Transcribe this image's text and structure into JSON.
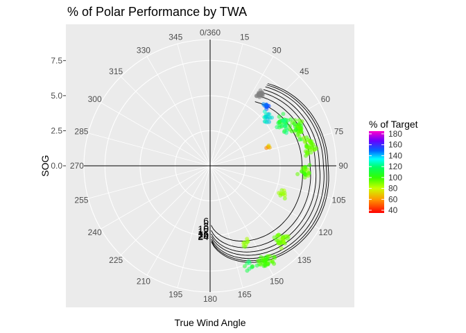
{
  "chart_data": {
    "type": "scatter",
    "coordinate_system": "polar",
    "title": "% of Polar Performance by TWA",
    "xlabel": "True Wind Angle",
    "ylabel": "SOG",
    "angle_ticks": [
      "0/360",
      "15",
      "30",
      "45",
      "60",
      "75",
      "90",
      "105",
      "120",
      "135",
      "150",
      "165",
      "180",
      "195",
      "210",
      "225",
      "240",
      "255",
      "270",
      "285",
      "300",
      "315",
      "330",
      "345"
    ],
    "radial_ticks": [
      "0.0",
      "2.5",
      "5.0",
      "7.5"
    ],
    "radial_tick_values": [
      0,
      2.5,
      5.0,
      7.5
    ],
    "rlim": [
      0,
      9
    ],
    "legend": {
      "title": "% of Target",
      "placement": "right",
      "ticks": [
        "40",
        "60",
        "80",
        "100",
        "120",
        "140",
        "160",
        "180"
      ],
      "tick_values": [
        40,
        60,
        80,
        100,
        120,
        140,
        160,
        180
      ],
      "range": [
        35,
        185
      ]
    },
    "polar_curves": {
      "labels": [
        "6",
        "8",
        "10",
        "12",
        "16",
        "20",
        "24"
      ],
      "peak_speed": [
        6.9,
        7.5,
        7.9,
        8.2,
        8.5,
        8.7,
        8.85
      ]
    },
    "clusters": [
      {
        "twa": 35,
        "twa_spread": 4,
        "sog": 6.2,
        "sog_spread": 0.35,
        "pct": 0,
        "count": 30
      },
      {
        "twa": 43,
        "twa_spread": 3,
        "sog": 5.9,
        "sog_spread": 0.3,
        "pct": 140,
        "count": 12
      },
      {
        "twa": 50,
        "twa_spread": 6,
        "sog": 5.3,
        "sog_spread": 0.4,
        "pct": 125,
        "count": 16
      },
      {
        "twa": 60,
        "twa_spread": 8,
        "sog": 6.0,
        "sog_spread": 0.6,
        "pct": 108,
        "count": 34
      },
      {
        "twa": 68,
        "twa_spread": 8,
        "sog": 6.8,
        "sog_spread": 0.6,
        "pct": 98,
        "count": 40
      },
      {
        "twa": 80,
        "twa_spread": 8,
        "sog": 7.2,
        "sog_spread": 0.6,
        "pct": 92,
        "count": 34
      },
      {
        "twa": 72,
        "twa_spread": 5,
        "sog": 4.4,
        "sog_spread": 0.3,
        "pct": 62,
        "count": 5
      },
      {
        "twa": 94,
        "twa_spread": 6,
        "sog": 6.8,
        "sog_spread": 0.6,
        "pct": 95,
        "count": 22
      },
      {
        "twa": 112,
        "twa_spread": 5,
        "sog": 5.5,
        "sog_spread": 0.5,
        "pct": 86,
        "count": 10
      },
      {
        "twa": 137,
        "twa_spread": 6,
        "sog": 7.3,
        "sog_spread": 0.6,
        "pct": 92,
        "count": 32
      },
      {
        "twa": 150,
        "twa_spread": 6,
        "sog": 7.8,
        "sog_spread": 0.6,
        "pct": 97,
        "count": 36
      },
      {
        "twa": 158,
        "twa_spread": 5,
        "sog": 7.6,
        "sog_spread": 0.5,
        "pct": 108,
        "count": 10
      },
      {
        "twa": 155,
        "twa_spread": 5,
        "sog": 6.0,
        "sog_spread": 0.4,
        "pct": 88,
        "count": 8
      }
    ]
  }
}
